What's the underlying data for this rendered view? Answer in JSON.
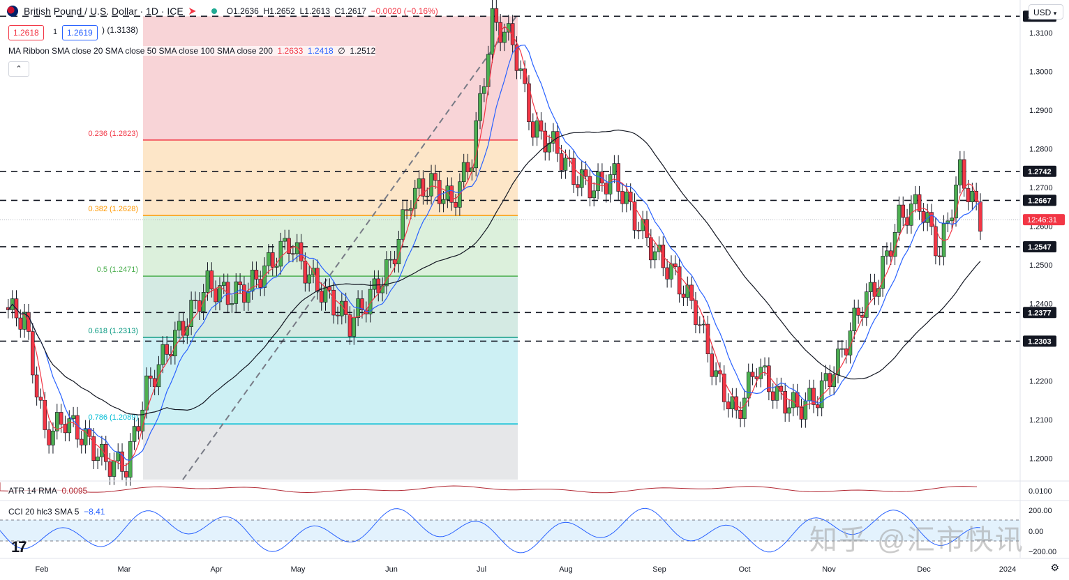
{
  "header": {
    "title": "British Pound / U.S. Dollar · 1D · ICE",
    "open_label": "O",
    "open": "1.2636",
    "high_label": "H",
    "high": "1.2652",
    "low_label": "L",
    "low": "1.2613",
    "close_label": "C",
    "close": "1.2617",
    "change": "−0.0020 (−0.16%)"
  },
  "quote": {
    "sell": "1.2618",
    "spread": "1",
    "buy": "1.2619",
    "partial": ") (1.3138)"
  },
  "currency_button": "USD",
  "indicators": {
    "ma_ribbon": {
      "label": "MA Ribbon SMA close 20 SMA close 50 SMA close 100 SMA close 200",
      "v1": "1.2633",
      "v2": "1.2418",
      "v3": "∅",
      "v4": "1.2512"
    },
    "atr": {
      "label": "ATR 14 RMA",
      "value": "0.0095"
    },
    "cci": {
      "label": "CCI 20 hlc3 SMA 5",
      "value": "−8.41"
    }
  },
  "collapse_glyph": "⌃",
  "watermark": "知乎 @汇市快讯",
  "colors": {
    "up": "#4caf50",
    "down": "#f23645",
    "sma20": "#f23645",
    "sma50": "#2962ff",
    "sma200": "#131722",
    "fib_0": "#f7cfd3",
    "fib_236": "#fde3c2",
    "fib_382": "#d8eed8",
    "fib_5": "#cfe8e0",
    "fib_618": "#c8eef3",
    "fib_786": "#e3e4e7"
  },
  "chart_data": {
    "type": "candlestick",
    "y_axis_ticks": [
      "1.3100",
      "1.3000",
      "1.2900",
      "1.2800",
      "1.2700",
      "1.2600",
      "1.2500",
      "1.2400",
      "1.2300",
      "1.2200",
      "1.2100",
      "1.2000"
    ],
    "x_axis_labels": [
      "Feb",
      "Mar",
      "Apr",
      "May",
      "Jun",
      "Jul",
      "Aug",
      "Sep",
      "Oct",
      "Nov",
      "Dec",
      "2024"
    ],
    "ylim": [
      1.1945,
      1.3185
    ],
    "current_price": "1.2617",
    "countdown": "12:46:31",
    "levels": [
      {
        "label": "1.3143",
        "value": 1.3143
      },
      {
        "label": "1.2742",
        "value": 1.2742
      },
      {
        "label": "1.2667",
        "value": 1.2667
      },
      {
        "label": "1.2547",
        "value": 1.2547
      },
      {
        "label": "1.2377",
        "value": 1.2377
      },
      {
        "label": "1.2303",
        "value": 1.2303
      }
    ],
    "fibonacci": [
      {
        "label": "0.236 (1.2823)",
        "level": 0.236,
        "price": 1.2823
      },
      {
        "label": "0.382 (1.2628)",
        "level": 0.382,
        "price": 1.2628
      },
      {
        "label": "0.5 (1.2471)",
        "level": 0.5,
        "price": 1.2471
      },
      {
        "label": "0.618 (1.2313)",
        "level": 0.618,
        "price": 1.2313
      },
      {
        "label": "0.786 (1.2089)",
        "level": 0.786,
        "price": 1.2089
      }
    ],
    "close_series": {
      "x": [
        "Jan 23",
        "Feb 1",
        "Feb 8",
        "Feb 15",
        "Feb 22",
        "Mar 1",
        "Mar 8",
        "Mar 15",
        "Mar 22",
        "Mar 29",
        "Apr 5",
        "Apr 12",
        "Apr 19",
        "Apr 26",
        "May 3",
        "May 10",
        "May 17",
        "May 24",
        "May 31",
        "Jun 7",
        "Jun 14",
        "Jun 21",
        "Jun 28",
        "Jul 5",
        "Jul 12",
        "Jul 14",
        "Jul 21",
        "Jul 28",
        "Aug 4",
        "Aug 11",
        "Aug 18",
        "Aug 25",
        "Sep 1",
        "Sep 8",
        "Sep 15",
        "Sep 22",
        "Sep 29",
        "Oct 6",
        "Oct 13",
        "Oct 20",
        "Oct 27",
        "Nov 3",
        "Nov 10",
        "Nov 17",
        "Nov 24",
        "Dec 1",
        "Dec 8",
        "Dec 14",
        "Dec 19"
      ],
      "close": [
        1.239,
        1.236,
        1.206,
        1.21,
        1.205,
        1.199,
        1.198,
        1.218,
        1.228,
        1.236,
        1.245,
        1.242,
        1.244,
        1.25,
        1.256,
        1.247,
        1.241,
        1.235,
        1.242,
        1.25,
        1.268,
        1.271,
        1.266,
        1.278,
        1.313,
        1.308,
        1.285,
        1.281,
        1.273,
        1.27,
        1.273,
        1.262,
        1.253,
        1.247,
        1.238,
        1.221,
        1.211,
        1.224,
        1.216,
        1.213,
        1.216,
        1.225,
        1.238,
        1.246,
        1.262,
        1.266,
        1.253,
        1.274,
        1.2617
      ]
    },
    "atr_ticks": [
      "0.0100"
    ],
    "cci_ticks": [
      "200.00",
      "0.00",
      "−200.00"
    ]
  }
}
